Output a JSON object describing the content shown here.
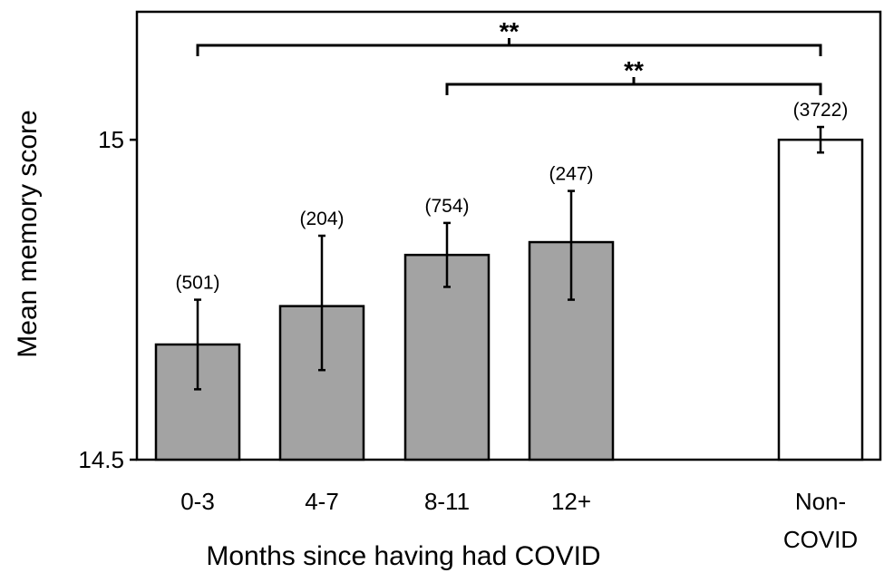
{
  "chart_data": {
    "type": "bar",
    "title": "",
    "xlabel": "Months since having had COVID",
    "ylabel": "Mean memory score",
    "ylim": [
      14.5,
      15.2
    ],
    "yticks": [
      "14.5",
      "15"
    ],
    "categories": [
      "0-3",
      "4-7",
      "8-11",
      "12+",
      "Non-COVID"
    ],
    "category_lines": [
      [
        "0-3"
      ],
      [
        "4-7"
      ],
      [
        "8-11"
      ],
      [
        "12+"
      ],
      [
        "Non-",
        "COVID"
      ]
    ],
    "values": [
      14.68,
      14.74,
      14.82,
      14.84,
      15.0
    ],
    "error": [
      [
        14.61,
        14.75
      ],
      [
        14.64,
        14.85
      ],
      [
        14.77,
        14.87
      ],
      [
        14.75,
        14.92
      ],
      [
        14.98,
        15.02
      ]
    ],
    "n_labels": [
      "(501)",
      "(204)",
      "(754)",
      "(247)",
      "(3722)"
    ],
    "bar_colors": [
      "#a3a3a3",
      "#a3a3a3",
      "#a3a3a3",
      "#a3a3a3",
      "#ffffff"
    ],
    "significance": [
      {
        "from": "0-3",
        "to": "Non-COVID",
        "label": "**"
      },
      {
        "from": "8-11",
        "to": "Non-COVID",
        "label": "**"
      }
    ],
    "grid": false,
    "legend": "none"
  }
}
